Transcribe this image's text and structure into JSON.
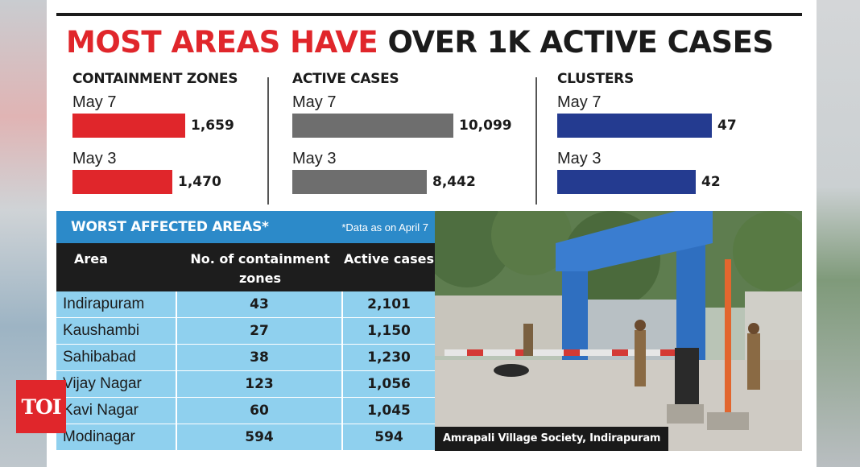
{
  "headline": {
    "red": "MOST AREAS HAVE",
    "dark": "OVER 1K ACTIVE CASES"
  },
  "colors": {
    "red": "#e0262b",
    "gray": "#6e6e6e",
    "blue": "#243b90",
    "table_header": "#2c8ac9",
    "table_cell": "#8fd0ee"
  },
  "chart_data": [
    {
      "type": "bar",
      "title": "CONTAINMENT ZONES",
      "categories": [
        "May 7",
        "May 3"
      ],
      "values": [
        1659,
        1470
      ],
      "labels": [
        "1,659",
        "1,470"
      ],
      "color": "#e0262b"
    },
    {
      "type": "bar",
      "title": "ACTIVE CASES",
      "categories": [
        "May 7",
        "May 3"
      ],
      "values": [
        10099,
        8442
      ],
      "labels": [
        "10,099",
        "8,442"
      ],
      "color": "#6e6e6e"
    },
    {
      "type": "bar",
      "title": "CLUSTERS",
      "categories": [
        "May 7",
        "May 3"
      ],
      "values": [
        47,
        42
      ],
      "labels": [
        "47",
        "42"
      ],
      "color": "#243b90"
    },
    {
      "type": "table",
      "title": "WORST AFFECTED AREAS*",
      "note": "*Data as on April 7",
      "columns": [
        "Area",
        "No. of containment zones",
        "Active cases"
      ],
      "rows": [
        [
          "Indirapuram",
          "43",
          "2,101"
        ],
        [
          "Kaushambi",
          "27",
          "1,150"
        ],
        [
          "Sahibabad",
          "38",
          "1,230"
        ],
        [
          "Vijay Nagar",
          "123",
          "1,056"
        ],
        [
          "Kavi Nagar",
          "60",
          "1,045"
        ],
        [
          "Modinagar",
          "594",
          "594"
        ]
      ]
    }
  ],
  "photo": {
    "caption": "Amrapali Village Society, Indirapuram"
  },
  "logo": {
    "text": "TOI"
  }
}
